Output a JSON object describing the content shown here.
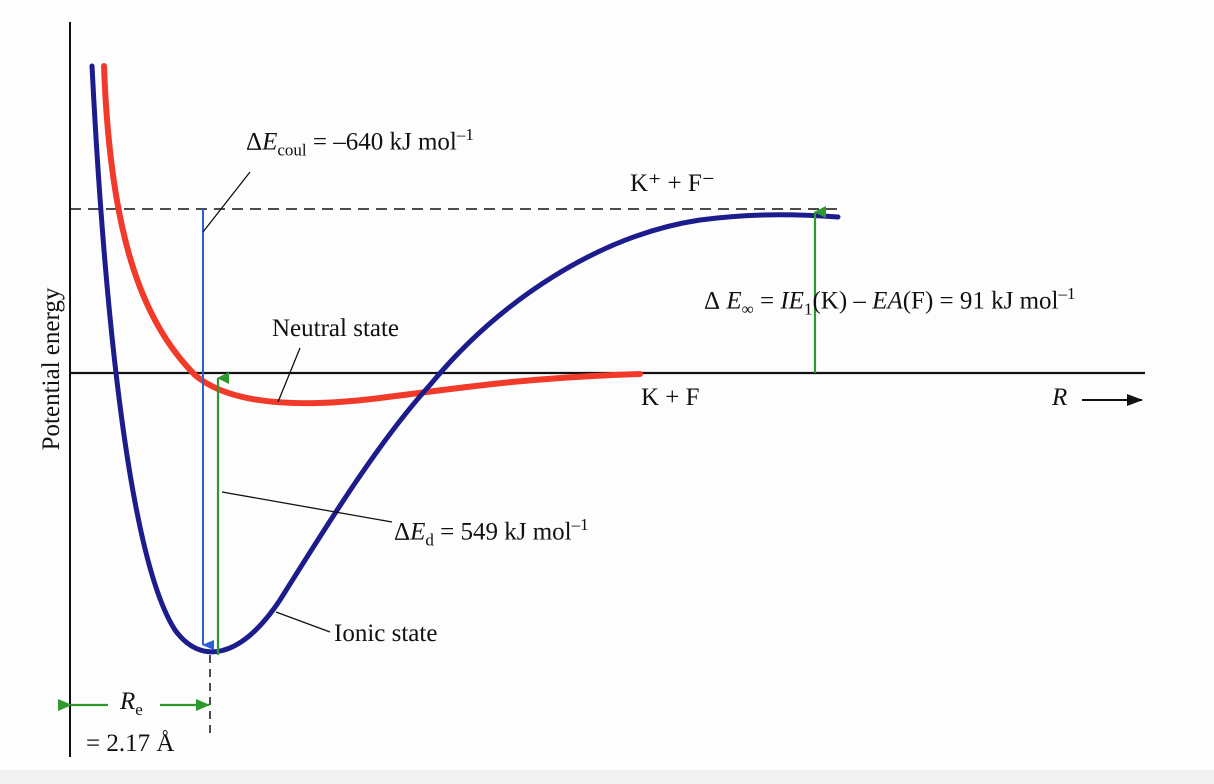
{
  "diagram": {
    "y_axis_label": "Potential energy",
    "x_axis_label": "R",
    "neutral_state_label": "Neutral state",
    "ionic_state_label": "Ionic state",
    "neutral_limit": "K + F",
    "ionic_limit": "K⁺ + F⁻",
    "coulomb": {
      "prefix": "Δ",
      "symbol": "E",
      "subscript": "coul",
      "value_text": " = –640 kJ mol",
      "exp": "–1"
    },
    "dissociation": {
      "prefix": "Δ",
      "symbol": "E",
      "subscript": "d",
      "value_text": " = 549 kJ mol",
      "exp": "–1"
    },
    "infinity": {
      "prefix": "Δ",
      "symbol": "E",
      "subscript": "∞",
      "eq": " = ",
      "ie": "IE",
      "ie_sub": "1",
      "k": "(K) – ",
      "ea": "EA",
      "rest": "(F) = 91 kJ mol",
      "exp": "–1"
    },
    "re": {
      "symbol": "R",
      "subscript": "e",
      "value": "= 2.17 Å"
    },
    "colors": {
      "ionic_curve": "#1c1c8c",
      "neutral_curve": "#f23a2a",
      "coulomb_arrow": "#2a5fd6",
      "green_arrow": "#2e9a2e",
      "axis": "#111111",
      "baseline": "#111111"
    }
  }
}
